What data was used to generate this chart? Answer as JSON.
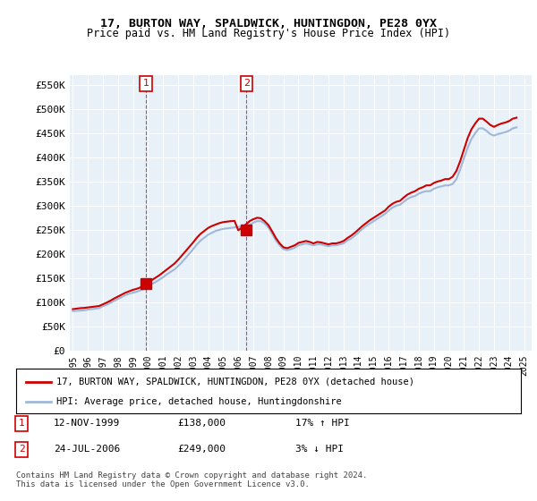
{
  "title": "17, BURTON WAY, SPALDWICK, HUNTINGDON, PE28 0YX",
  "subtitle": "Price paid vs. HM Land Registry's House Price Index (HPI)",
  "background_color": "#ffffff",
  "plot_bg_color": "#e8f0f8",
  "grid_color": "#ffffff",
  "ylabel_ticks": [
    "£0",
    "£50K",
    "£100K",
    "£150K",
    "£200K",
    "£250K",
    "£300K",
    "£350K",
    "£400K",
    "£450K",
    "£500K",
    "£550K"
  ],
  "ytick_values": [
    0,
    50000,
    100000,
    150000,
    200000,
    250000,
    300000,
    350000,
    400000,
    450000,
    500000,
    550000
  ],
  "ylim": [
    0,
    570000
  ],
  "xlim_start": 1995,
  "xlim_end": 2025.5,
  "xtick_years": [
    1995,
    1996,
    1997,
    1998,
    1999,
    2000,
    2001,
    2002,
    2003,
    2004,
    2005,
    2006,
    2007,
    2008,
    2009,
    2010,
    2011,
    2012,
    2013,
    2014,
    2015,
    2016,
    2017,
    2018,
    2019,
    2020,
    2021,
    2022,
    2023,
    2024,
    2025
  ],
  "hpi_color": "#a0b8d8",
  "price_color": "#cc0000",
  "sale1_x": 1999.87,
  "sale1_y": 138000,
  "sale2_x": 2006.55,
  "sale2_y": 249000,
  "legend_label1": "17, BURTON WAY, SPALDWICK, HUNTINGDON, PE28 0YX (detached house)",
  "legend_label2": "HPI: Average price, detached house, Huntingdonshire",
  "table_row1": [
    "1",
    "12-NOV-1999",
    "£138,000",
    "17% ↑ HPI"
  ],
  "table_row2": [
    "2",
    "24-JUL-2006",
    "£249,000",
    "3% ↓ HPI"
  ],
  "footer": "Contains HM Land Registry data © Crown copyright and database right 2024.\nThis data is licensed under the Open Government Licence v3.0.",
  "hpi_data_x": [
    1995.0,
    1995.25,
    1995.5,
    1995.75,
    1996.0,
    1996.25,
    1996.5,
    1996.75,
    1997.0,
    1997.25,
    1997.5,
    1997.75,
    1998.0,
    1998.25,
    1998.5,
    1998.75,
    1999.0,
    1999.25,
    1999.5,
    1999.75,
    2000.0,
    2000.25,
    2000.5,
    2000.75,
    2001.0,
    2001.25,
    2001.5,
    2001.75,
    2002.0,
    2002.25,
    2002.5,
    2002.75,
    2003.0,
    2003.25,
    2003.5,
    2003.75,
    2004.0,
    2004.25,
    2004.5,
    2004.75,
    2005.0,
    2005.25,
    2005.5,
    2005.75,
    2006.0,
    2006.25,
    2006.5,
    2006.75,
    2007.0,
    2007.25,
    2007.5,
    2007.75,
    2008.0,
    2008.25,
    2008.5,
    2008.75,
    2009.0,
    2009.25,
    2009.5,
    2009.75,
    2010.0,
    2010.25,
    2010.5,
    2010.75,
    2011.0,
    2011.25,
    2011.5,
    2011.75,
    2012.0,
    2012.25,
    2012.5,
    2012.75,
    2013.0,
    2013.25,
    2013.5,
    2013.75,
    2014.0,
    2014.25,
    2014.5,
    2014.75,
    2015.0,
    2015.25,
    2015.5,
    2015.75,
    2016.0,
    2016.25,
    2016.5,
    2016.75,
    2017.0,
    2017.25,
    2017.5,
    2017.75,
    2018.0,
    2018.25,
    2018.5,
    2018.75,
    2019.0,
    2019.25,
    2019.5,
    2019.75,
    2020.0,
    2020.25,
    2020.5,
    2020.75,
    2021.0,
    2021.25,
    2021.5,
    2021.75,
    2022.0,
    2022.25,
    2022.5,
    2022.75,
    2023.0,
    2023.25,
    2023.5,
    2023.75,
    2024.0,
    2024.25,
    2024.5
  ],
  "hpi_data_y": [
    82000,
    82500,
    83000,
    83500,
    85000,
    86000,
    87000,
    88000,
    92000,
    95000,
    99000,
    103000,
    107000,
    111000,
    115000,
    118000,
    120000,
    122000,
    125000,
    128000,
    133000,
    138000,
    142000,
    147000,
    152000,
    158000,
    163000,
    168000,
    175000,
    183000,
    192000,
    201000,
    210000,
    220000,
    228000,
    234000,
    240000,
    244000,
    248000,
    250000,
    252000,
    253000,
    254000,
    255000,
    256000,
    257000,
    258000,
    260000,
    265000,
    268000,
    268000,
    263000,
    255000,
    242000,
    228000,
    218000,
    210000,
    208000,
    210000,
    213000,
    218000,
    220000,
    222000,
    220000,
    218000,
    220000,
    220000,
    218000,
    216000,
    218000,
    218000,
    220000,
    222000,
    228000,
    232000,
    238000,
    245000,
    252000,
    258000,
    263000,
    268000,
    273000,
    278000,
    283000,
    290000,
    296000,
    300000,
    302000,
    308000,
    314000,
    318000,
    320000,
    325000,
    328000,
    330000,
    330000,
    335000,
    338000,
    340000,
    342000,
    342000,
    345000,
    355000,
    375000,
    398000,
    420000,
    438000,
    450000,
    460000,
    460000,
    455000,
    448000,
    445000,
    448000,
    450000,
    452000,
    455000,
    460000,
    462000
  ],
  "price_data_x": [
    1995.0,
    1995.25,
    1995.5,
    1995.75,
    1996.0,
    1996.25,
    1996.5,
    1996.75,
    1997.0,
    1997.25,
    1997.5,
    1997.75,
    1998.0,
    1998.25,
    1998.5,
    1998.75,
    1999.0,
    1999.25,
    1999.5,
    1999.75,
    2000.0,
    2000.25,
    2000.5,
    2000.75,
    2001.0,
    2001.25,
    2001.5,
    2001.75,
    2002.0,
    2002.25,
    2002.5,
    2002.75,
    2003.0,
    2003.25,
    2003.5,
    2003.75,
    2004.0,
    2004.25,
    2004.5,
    2004.75,
    2005.0,
    2005.25,
    2005.5,
    2005.75,
    2006.0,
    2006.25,
    2006.5,
    2006.75,
    2007.0,
    2007.25,
    2007.5,
    2007.75,
    2008.0,
    2008.25,
    2008.5,
    2008.75,
    2009.0,
    2009.25,
    2009.5,
    2009.75,
    2010.0,
    2010.25,
    2010.5,
    2010.75,
    2011.0,
    2011.25,
    2011.5,
    2011.75,
    2012.0,
    2012.25,
    2012.5,
    2012.75,
    2013.0,
    2013.25,
    2013.5,
    2013.75,
    2014.0,
    2014.25,
    2014.5,
    2014.75,
    2015.0,
    2015.25,
    2015.5,
    2015.75,
    2016.0,
    2016.25,
    2016.5,
    2016.75,
    2017.0,
    2017.25,
    2017.5,
    2017.75,
    2018.0,
    2018.25,
    2018.5,
    2018.75,
    2019.0,
    2019.25,
    2019.5,
    2019.75,
    2020.0,
    2020.25,
    2020.5,
    2020.75,
    2021.0,
    2021.25,
    2021.5,
    2021.75,
    2022.0,
    2022.25,
    2022.5,
    2022.75,
    2023.0,
    2023.25,
    2023.5,
    2023.75,
    2024.0,
    2024.25,
    2024.5
  ],
  "price_data_y": [
    86000,
    87000,
    88000,
    88500,
    89500,
    90500,
    91500,
    92500,
    96000,
    99500,
    103500,
    108000,
    112000,
    116000,
    120000,
    123000,
    126000,
    128000,
    131000,
    138000,
    140000,
    146000,
    151000,
    156000,
    162000,
    168000,
    174000,
    180000,
    188000,
    197000,
    206000,
    215000,
    224000,
    234000,
    242000,
    248000,
    254000,
    258000,
    261000,
    264000,
    266000,
    267000,
    268000,
    268500,
    249000,
    255000,
    261000,
    268000,
    272000,
    275000,
    274000,
    268000,
    260000,
    247000,
    233000,
    222000,
    214000,
    212000,
    215000,
    218000,
    223000,
    225000,
    227000,
    225000,
    222000,
    225000,
    224000,
    222000,
    220000,
    222000,
    222000,
    224000,
    227000,
    233000,
    238000,
    244000,
    251000,
    258000,
    264000,
    270000,
    275000,
    280000,
    285000,
    290000,
    298000,
    304000,
    308000,
    310000,
    317000,
    323000,
    327000,
    330000,
    335000,
    338000,
    342000,
    342000,
    347000,
    350000,
    352000,
    355000,
    355000,
    360000,
    372000,
    392000,
    416000,
    440000,
    458000,
    470000,
    480000,
    480000,
    474000,
    467000,
    463000,
    467000,
    470000,
    472000,
    475000,
    480000,
    482000
  ]
}
